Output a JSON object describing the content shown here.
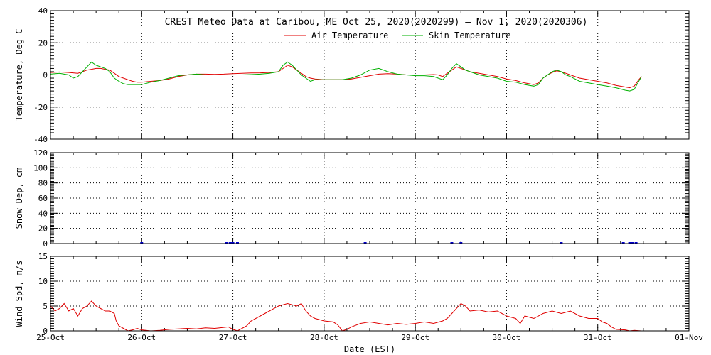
{
  "figure": {
    "title": "CREST Meteo Data at Caribou, ME   Oct 25, 2020(2020299) — Nov  1, 2020(2020306)",
    "xlabel": "Date (EST)",
    "x_tick_labels": [
      "25-Oct",
      "26-Oct",
      "27-Oct",
      "28-Oct",
      "29-Oct",
      "30-Oct",
      "31-Oct",
      "01-Nov"
    ]
  },
  "chart_data": [
    {
      "type": "line",
      "ylabel": "Temperature, Deg C",
      "ylim": [
        -40,
        40
      ],
      "yticks": [
        -40,
        -20,
        0,
        20,
        40
      ],
      "xlim": [
        0,
        7
      ],
      "grid": true,
      "legend_placement": "top-center",
      "series": [
        {
          "name": "Air Temperature",
          "color": "#e00000",
          "points": [
            [
              0,
              1.5
            ],
            [
              0.1,
              1.8
            ],
            [
              0.2,
              1.5
            ],
            [
              0.3,
              1
            ],
            [
              0.35,
              2
            ],
            [
              0.4,
              3
            ],
            [
              0.45,
              3.5
            ],
            [
              0.5,
              4
            ],
            [
              0.55,
              4
            ],
            [
              0.6,
              3.5
            ],
            [
              0.65,
              3
            ],
            [
              0.7,
              1
            ],
            [
              0.75,
              -1
            ],
            [
              0.8,
              -2
            ],
            [
              0.85,
              -3
            ],
            [
              0.9,
              -4
            ],
            [
              0.95,
              -4.5
            ],
            [
              1,
              -4.5
            ],
            [
              1.1,
              -4
            ],
            [
              1.2,
              -3.5
            ],
            [
              1.3,
              -2.5
            ],
            [
              1.4,
              -1
            ],
            [
              1.5,
              0
            ],
            [
              1.6,
              0.5
            ],
            [
              1.7,
              0.5
            ],
            [
              1.8,
              0.3
            ],
            [
              1.9,
              0.5
            ],
            [
              2,
              0.8
            ],
            [
              2.1,
              1
            ],
            [
              2.2,
              1.2
            ],
            [
              2.3,
              1.3
            ],
            [
              2.4,
              1.5
            ],
            [
              2.5,
              2
            ],
            [
              2.55,
              4
            ],
            [
              2.6,
              6
            ],
            [
              2.65,
              5
            ],
            [
              2.7,
              3
            ],
            [
              2.75,
              1
            ],
            [
              2.8,
              -1
            ],
            [
              2.85,
              -2
            ],
            [
              2.9,
              -2.5
            ],
            [
              3,
              -3
            ],
            [
              3.1,
              -3
            ],
            [
              3.2,
              -3
            ],
            [
              3.3,
              -2.5
            ],
            [
              3.4,
              -1.5
            ],
            [
              3.5,
              -0.5
            ],
            [
              3.6,
              0.5
            ],
            [
              3.7,
              0.8
            ],
            [
              3.8,
              0.5
            ],
            [
              3.9,
              0
            ],
            [
              4,
              0
            ],
            [
              4.1,
              0
            ],
            [
              4.2,
              0.2
            ],
            [
              4.25,
              0
            ],
            [
              4.3,
              -1
            ],
            [
              4.35,
              1
            ],
            [
              4.4,
              3
            ],
            [
              4.45,
              5
            ],
            [
              4.5,
              4
            ],
            [
              4.55,
              3
            ],
            [
              4.6,
              2
            ],
            [
              4.7,
              1
            ],
            [
              4.8,
              0
            ],
            [
              4.9,
              -1
            ],
            [
              5,
              -2.5
            ],
            [
              5.1,
              -3.5
            ],
            [
              5.2,
              -5
            ],
            [
              5.3,
              -6
            ],
            [
              5.35,
              -5
            ],
            [
              5.4,
              -2
            ],
            [
              5.45,
              0
            ],
            [
              5.5,
              1.5
            ],
            [
              5.55,
              2.5
            ],
            [
              5.6,
              2
            ],
            [
              5.65,
              1
            ],
            [
              5.7,
              0
            ],
            [
              5.8,
              -2
            ],
            [
              5.9,
              -3
            ],
            [
              6,
              -4
            ],
            [
              6.1,
              -5
            ],
            [
              6.2,
              -6.5
            ],
            [
              6.3,
              -7.5
            ],
            [
              6.35,
              -8
            ],
            [
              6.4,
              -7
            ],
            [
              6.45,
              -3
            ],
            [
              6.48,
              -1
            ]
          ]
        },
        {
          "name": "Skin Temperature",
          "color": "#00b000",
          "points": [
            [
              0,
              0.5
            ],
            [
              0.1,
              1
            ],
            [
              0.2,
              0
            ],
            [
              0.25,
              -2
            ],
            [
              0.3,
              -1
            ],
            [
              0.35,
              2
            ],
            [
              0.4,
              5
            ],
            [
              0.45,
              8
            ],
            [
              0.5,
              6
            ],
            [
              0.55,
              5
            ],
            [
              0.6,
              4
            ],
            [
              0.65,
              2
            ],
            [
              0.7,
              -2
            ],
            [
              0.75,
              -4
            ],
            [
              0.8,
              -5.5
            ],
            [
              0.85,
              -6
            ],
            [
              0.9,
              -6
            ],
            [
              1,
              -6
            ],
            [
              1.1,
              -4.5
            ],
            [
              1.2,
              -3.5
            ],
            [
              1.3,
              -2
            ],
            [
              1.4,
              -0.5
            ],
            [
              1.5,
              0
            ],
            [
              1.6,
              0.5
            ],
            [
              1.7,
              0
            ],
            [
              1.8,
              0
            ],
            [
              1.9,
              0
            ],
            [
              2,
              0
            ],
            [
              2.1,
              0
            ],
            [
              2.2,
              0.2
            ],
            [
              2.3,
              0.5
            ],
            [
              2.4,
              1
            ],
            [
              2.5,
              2
            ],
            [
              2.55,
              6
            ],
            [
              2.6,
              8
            ],
            [
              2.65,
              6
            ],
            [
              2.7,
              3
            ],
            [
              2.75,
              0
            ],
            [
              2.8,
              -2
            ],
            [
              2.85,
              -4
            ],
            [
              2.9,
              -3
            ],
            [
              3,
              -3
            ],
            [
              3.1,
              -3
            ],
            [
              3.2,
              -3
            ],
            [
              3.3,
              -2
            ],
            [
              3.4,
              0
            ],
            [
              3.5,
              3
            ],
            [
              3.6,
              4
            ],
            [
              3.7,
              2
            ],
            [
              3.8,
              0.5
            ],
            [
              3.9,
              0
            ],
            [
              4,
              -0.5
            ],
            [
              4.1,
              -0.5
            ],
            [
              4.2,
              -1
            ],
            [
              4.25,
              -2
            ],
            [
              4.3,
              -3
            ],
            [
              4.35,
              0
            ],
            [
              4.4,
              4
            ],
            [
              4.45,
              7
            ],
            [
              4.5,
              5
            ],
            [
              4.55,
              3
            ],
            [
              4.6,
              2
            ],
            [
              4.7,
              0
            ],
            [
              4.8,
              -1
            ],
            [
              4.9,
              -2
            ],
            [
              5,
              -4
            ],
            [
              5.1,
              -4.5
            ],
            [
              5.2,
              -6
            ],
            [
              5.3,
              -7
            ],
            [
              5.35,
              -6
            ],
            [
              5.4,
              -2
            ],
            [
              5.45,
              0
            ],
            [
              5.5,
              2
            ],
            [
              5.55,
              3
            ],
            [
              5.6,
              2
            ],
            [
              5.65,
              0
            ],
            [
              5.7,
              -1
            ],
            [
              5.8,
              -4
            ],
            [
              5.9,
              -5
            ],
            [
              6,
              -6
            ],
            [
              6.1,
              -7
            ],
            [
              6.2,
              -8
            ],
            [
              6.3,
              -9.5
            ],
            [
              6.35,
              -10
            ],
            [
              6.4,
              -9
            ],
            [
              6.45,
              -4
            ],
            [
              6.48,
              -1
            ]
          ]
        }
      ]
    },
    {
      "type": "bar",
      "ylabel": "Snow Dep, cm",
      "ylim": [
        0,
        120
      ],
      "yticks": [
        0,
        20,
        40,
        60,
        80,
        100,
        120
      ],
      "xlim": [
        0,
        7
      ],
      "grid": true,
      "series": [
        {
          "color": "#0000cc",
          "points": [
            [
              1.0,
              0.5
            ],
            [
              1.93,
              0.5
            ],
            [
              1.97,
              0.6
            ],
            [
              2.0,
              0.5
            ],
            [
              2.05,
              0.5
            ],
            [
              3.45,
              0.3
            ],
            [
              4.4,
              0.4
            ],
            [
              4.5,
              0.3
            ],
            [
              5.6,
              0.5
            ],
            [
              6.28,
              0.5
            ],
            [
              6.35,
              0.7
            ],
            [
              6.38,
              0.5
            ],
            [
              6.42,
              0.6
            ]
          ]
        }
      ]
    },
    {
      "type": "line",
      "ylabel": "Wind Spd, m/s",
      "ylim": [
        0,
        15
      ],
      "yticks": [
        0,
        5,
        10,
        15
      ],
      "xlim": [
        0,
        7
      ],
      "grid": true,
      "series": [
        {
          "color": "#e00000",
          "points": [
            [
              0,
              5
            ],
            [
              0.05,
              4
            ],
            [
              0.1,
              4.5
            ],
            [
              0.15,
              5.5
            ],
            [
              0.2,
              4
            ],
            [
              0.25,
              4.5
            ],
            [
              0.3,
              3
            ],
            [
              0.35,
              4.5
            ],
            [
              0.4,
              5
            ],
            [
              0.45,
              6
            ],
            [
              0.5,
              5
            ],
            [
              0.55,
              4.5
            ],
            [
              0.6,
              4
            ],
            [
              0.65,
              4
            ],
            [
              0.7,
              3.5
            ],
            [
              0.72,
              2
            ],
            [
              0.75,
              1
            ],
            [
              0.8,
              0.5
            ],
            [
              0.85,
              0
            ],
            [
              0.9,
              0.2
            ],
            [
              0.95,
              0.5
            ],
            [
              1,
              0.2
            ],
            [
              1.1,
              0
            ],
            [
              1.2,
              0.1
            ],
            [
              1.3,
              0.3
            ],
            [
              1.4,
              0.4
            ],
            [
              1.5,
              0.5
            ],
            [
              1.6,
              0.4
            ],
            [
              1.7,
              0.6
            ],
            [
              1.8,
              0.5
            ],
            [
              1.9,
              0.7
            ],
            [
              1.95,
              0.8
            ],
            [
              2,
              0.3
            ],
            [
              2.05,
              0
            ],
            [
              2.1,
              0.5
            ],
            [
              2.15,
              1
            ],
            [
              2.2,
              2
            ],
            [
              2.3,
              3
            ],
            [
              2.4,
              4
            ],
            [
              2.5,
              5
            ],
            [
              2.6,
              5.5
            ],
            [
              2.7,
              5
            ],
            [
              2.75,
              5.5
            ],
            [
              2.8,
              4
            ],
            [
              2.85,
              3
            ],
            [
              2.9,
              2.5
            ],
            [
              3,
              2
            ],
            [
              3.1,
              1.8
            ],
            [
              3.15,
              1.2
            ],
            [
              3.2,
              0
            ],
            [
              3.25,
              0.3
            ],
            [
              3.3,
              0.8
            ],
            [
              3.4,
              1.5
            ],
            [
              3.5,
              1.8
            ],
            [
              3.6,
              1.5
            ],
            [
              3.7,
              1.2
            ],
            [
              3.8,
              1.5
            ],
            [
              3.9,
              1.3
            ],
            [
              4,
              1.5
            ],
            [
              4.1,
              1.8
            ],
            [
              4.2,
              1.5
            ],
            [
              4.3,
              2
            ],
            [
              4.35,
              2.5
            ],
            [
              4.4,
              3.5
            ],
            [
              4.45,
              4.5
            ],
            [
              4.5,
              5.5
            ],
            [
              4.55,
              5
            ],
            [
              4.6,
              4
            ],
            [
              4.7,
              4.2
            ],
            [
              4.8,
              3.8
            ],
            [
              4.9,
              4
            ],
            [
              5,
              3
            ],
            [
              5.1,
              2.5
            ],
            [
              5.15,
              1.5
            ],
            [
              5.2,
              3
            ],
            [
              5.3,
              2.5
            ],
            [
              5.4,
              3.5
            ],
            [
              5.5,
              4
            ],
            [
              5.6,
              3.5
            ],
            [
              5.7,
              4
            ],
            [
              5.8,
              3
            ],
            [
              5.9,
              2.5
            ],
            [
              6,
              2.5
            ],
            [
              6.05,
              1.8
            ],
            [
              6.1,
              1.5
            ],
            [
              6.15,
              0.8
            ],
            [
              6.2,
              0.3
            ],
            [
              6.3,
              0.2
            ],
            [
              6.35,
              0
            ],
            [
              6.4,
              0.1
            ],
            [
              6.48,
              0
            ]
          ]
        }
      ]
    }
  ]
}
